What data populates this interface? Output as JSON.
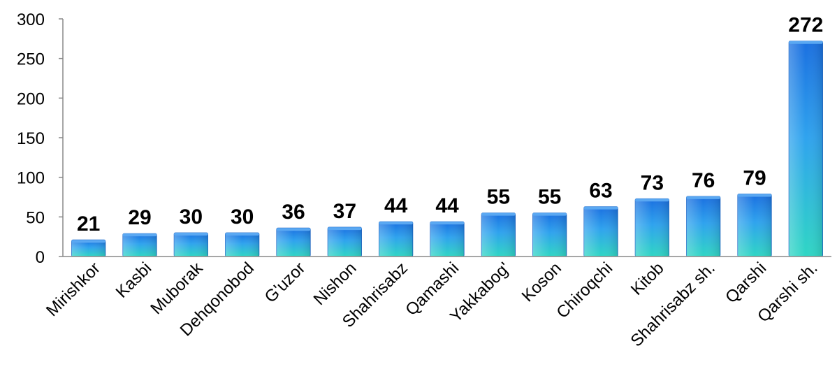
{
  "chart_data": {
    "type": "bar",
    "title": "",
    "xlabel": "",
    "ylabel": "",
    "categories": [
      "Mirishkor",
      "Kasbi",
      "Muborak",
      "Dehqonobod",
      "G'uzor",
      "Nishon",
      "Shahrisabz",
      "Qamashi",
      "Yakkabog'",
      "Koson",
      "Chiroqchi",
      "Kitob",
      "Shahrisabz sh.",
      "Qarshi",
      "Qarshi sh."
    ],
    "values": [
      21,
      29,
      30,
      30,
      36,
      37,
      44,
      44,
      55,
      55,
      63,
      73,
      76,
      79,
      272
    ],
    "data_labels": [
      "21",
      "29",
      "30",
      "30",
      "36",
      "37",
      "44",
      "44",
      "55",
      "55",
      "63",
      "73",
      "76",
      "79",
      "272"
    ],
    "ylim": [
      0,
      300
    ],
    "yticks": [
      "0",
      "50",
      "100",
      "150",
      "200",
      "250",
      "300"
    ],
    "grid": false,
    "legend": "none",
    "colors": {
      "bar_top": "#1a6fe0",
      "bar_mid": "#2fa3ee",
      "bar_bottom": "#2fd6c4",
      "axis": "#888888",
      "text": "#000000"
    }
  }
}
